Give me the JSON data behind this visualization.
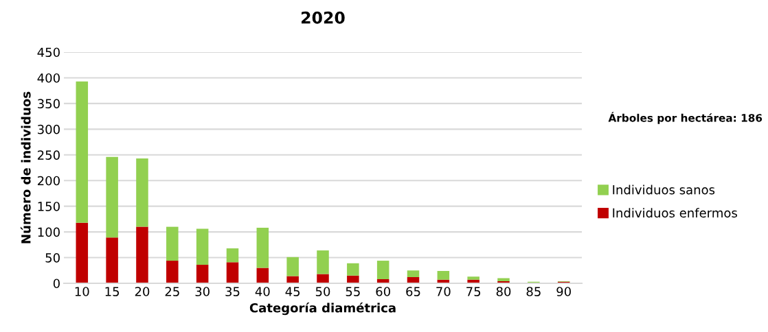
{
  "chart_data": {
    "type": "bar",
    "title": "2020",
    "xlabel": "Categoría diamétrica",
    "ylabel": "Número de individuos",
    "categories": [
      "10",
      "15",
      "20",
      "25",
      "30",
      "35",
      "40",
      "45",
      "50",
      "55",
      "60",
      "65",
      "70",
      "75",
      "80",
      "85",
      "90"
    ],
    "stacked": true,
    "series": [
      {
        "name": "Individuos enfermos",
        "color": "#c00000",
        "values": [
          118,
          89,
          110,
          44,
          36,
          41,
          30,
          14,
          18,
          15,
          8,
          12,
          7,
          7,
          4,
          null,
          3
        ]
      },
      {
        "name": "Individuos sanos",
        "color": "#92d050",
        "values": [
          275,
          157,
          133,
          66,
          70,
          27,
          78,
          37,
          46,
          24,
          36,
          13,
          17,
          6,
          6,
          3,
          1
        ]
      }
    ],
    "ylim": [
      0,
      450
    ],
    "yticks": [
      0,
      50,
      100,
      150,
      200,
      250,
      300,
      350,
      400,
      450
    ],
    "grid": "y",
    "legend": "right",
    "annotations": [
      "Árboles por hectárea: 186"
    ]
  }
}
